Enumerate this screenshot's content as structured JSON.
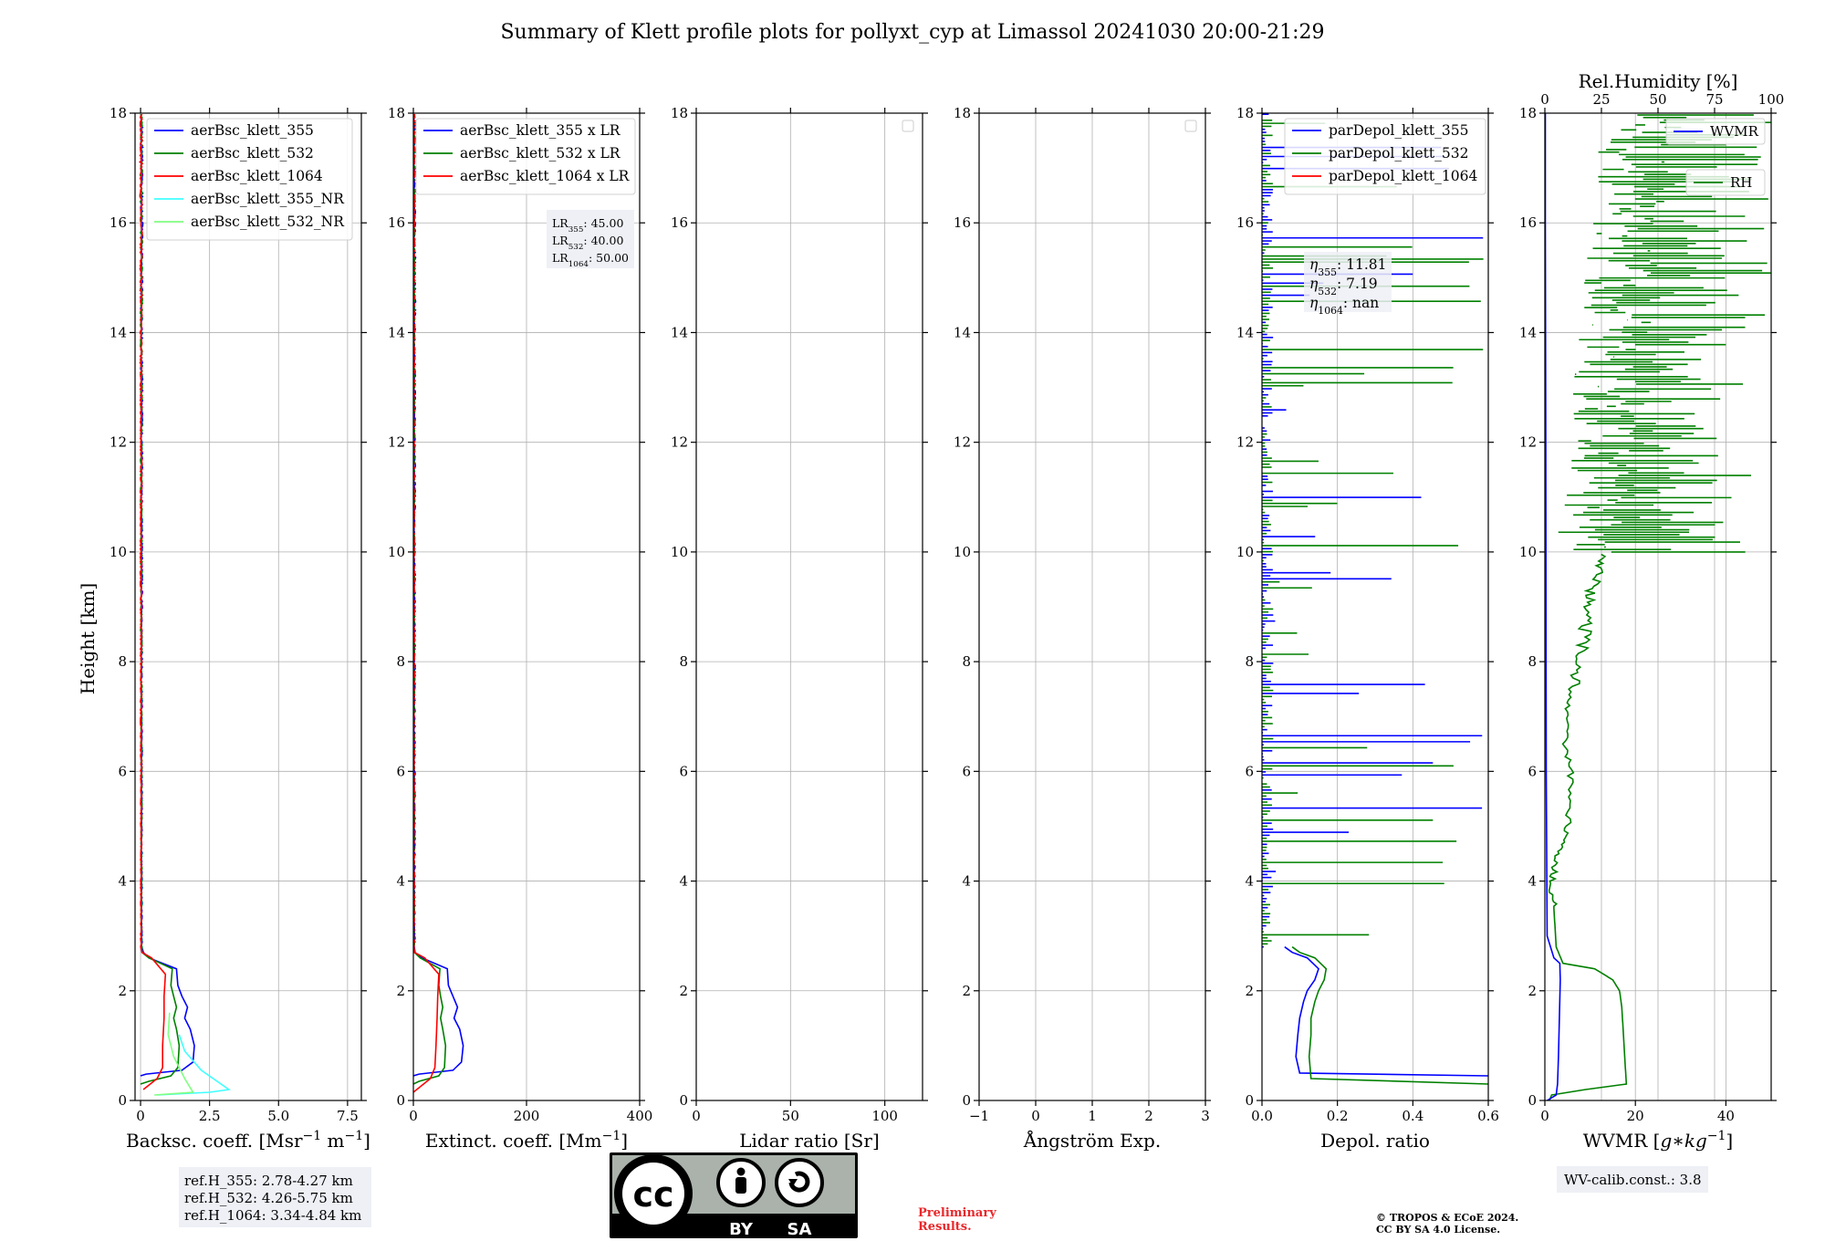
{
  "title": "Summary of Klett profile plots for pollyxt_cyp at Limassol 20241030 20:00-21:29",
  "y_axis": {
    "label": "Height [km]",
    "ylim": [
      0,
      18
    ],
    "ticks": [
      0,
      2,
      4,
      6,
      8,
      10,
      12,
      14,
      16,
      18
    ]
  },
  "colors": {
    "blue": "#0000ff",
    "green": "#008000",
    "red": "#ff0000",
    "cyan": "#40ffff",
    "lime": "#80ff80"
  },
  "chart_data": [
    {
      "type": "line",
      "xlabel": "Backsc. coeff. [Msr$^{-1}$ m$^{-1}$]",
      "xlabel_main": "Backsc. coeff. [Msr",
      "xlabel_mid": " m",
      "xlabel_exp": "−1",
      "xlim": [
        -0.2,
        8.0
      ],
      "xticks": [
        0,
        2.5,
        5.0,
        7.5
      ],
      "xtick_labels": [
        "0",
        "2.5",
        "5.0",
        "7.5"
      ],
      "ylim": [
        0,
        18
      ],
      "grid": true,
      "legend_position": "top-left",
      "legend": [
        "aerBsc_klett_355",
        "aerBsc_klett_532",
        "aerBsc_klett_1064",
        "aerBsc_klett_355_NR",
        "aerBsc_klett_532_NR"
      ],
      "legend_colors": [
        "#0000ff",
        "#008000",
        "#ff0000",
        "#40ffff",
        "#80ff80"
      ],
      "series": [
        {
          "name": "aerBsc_klett_355",
          "color": "#0000ff",
          "x": [
            0.0,
            0.2,
            1.5,
            1.9,
            1.95,
            1.8,
            1.6,
            1.7,
            1.5,
            1.35,
            1.3,
            0.3,
            0.1,
            0.05,
            0.05,
            0.04,
            0.04
          ],
          "y": [
            0.45,
            0.48,
            0.55,
            0.7,
            1.0,
            1.3,
            1.5,
            1.7,
            1.9,
            2.1,
            2.4,
            2.6,
            2.7,
            4.0,
            8.0,
            14.0,
            18.0
          ]
        },
        {
          "name": "aerBsc_klett_532",
          "color": "#008000",
          "x": [
            0.0,
            0.3,
            1.1,
            1.35,
            1.4,
            1.3,
            1.2,
            1.3,
            1.2,
            1.1,
            1.15,
            0.3,
            0.05,
            0.03,
            0.03
          ],
          "y": [
            0.3,
            0.35,
            0.45,
            0.6,
            1.0,
            1.3,
            1.5,
            1.7,
            1.9,
            2.1,
            2.4,
            2.6,
            2.7,
            6.0,
            18.0
          ]
        },
        {
          "name": "aerBsc_klett_1064",
          "color": "#ff0000",
          "x": [
            0.1,
            0.6,
            0.8,
            0.8,
            0.85,
            0.85,
            0.9,
            0.4,
            0.05,
            0.02,
            0.02
          ],
          "y": [
            0.2,
            0.4,
            0.6,
            1.0,
            1.5,
            1.9,
            2.3,
            2.6,
            2.7,
            6.0,
            18.0
          ]
        },
        {
          "name": "aerBsc_klett_355_NR",
          "color": "#40ffff",
          "x": [
            0.6,
            2.5,
            3.2,
            2.2,
            1.6,
            1.4
          ],
          "y": [
            0.1,
            0.15,
            0.2,
            0.55,
            0.9,
            1.2
          ]
        },
        {
          "name": "aerBsc_klett_532_NR",
          "color": "#80ff80",
          "x": [
            0.5,
            1.9,
            1.6,
            1.2,
            1.0,
            1.05
          ],
          "y": [
            0.1,
            0.15,
            0.4,
            0.8,
            1.2,
            1.6
          ]
        }
      ]
    },
    {
      "type": "line",
      "xlabel": "Extinct. coeff. [Mm$^{-1}$]",
      "xlabel_main": "Extinct. coeff. [Mm",
      "xlabel_exp": "−1",
      "xlim": [
        0,
        400
      ],
      "xticks": [
        0,
        200,
        400
      ],
      "xtick_labels": [
        "0",
        "200",
        "400"
      ],
      "ylim": [
        0,
        18
      ],
      "grid": true,
      "legend_position": "top-left",
      "legend": [
        "aerBsc_klett_355 x LR",
        "aerBsc_klett_532 x LR",
        "aerBsc_klett_1064 x LR"
      ],
      "legend_colors": [
        "#0000ff",
        "#008000",
        "#ff0000"
      ],
      "lr_box": {
        "lines": [
          {
            "pre": "LR",
            "sub": "355",
            "post": ": 45.00"
          },
          {
            "pre": "LR",
            "sub": "532",
            "post": ": 40.00"
          },
          {
            "pre": "LR",
            "sub": "1064",
            "post": ": 50.00"
          }
        ]
      },
      "series": [
        {
          "name": "aerBsc_klett_355 x LR",
          "color": "#0000ff",
          "x": [
            0,
            10,
            70,
            85,
            88,
            82,
            72,
            78,
            70,
            62,
            60,
            15,
            3,
            2,
            2
          ],
          "y": [
            0.45,
            0.48,
            0.55,
            0.7,
            1.0,
            1.3,
            1.5,
            1.7,
            1.9,
            2.1,
            2.4,
            2.6,
            2.7,
            8.0,
            18.0
          ]
        },
        {
          "name": "aerBsc_klett_532 x LR",
          "color": "#008000",
          "x": [
            0,
            10,
            45,
            55,
            57,
            52,
            48,
            52,
            48,
            45,
            47,
            12,
            2,
            1,
            1
          ],
          "y": [
            0.3,
            0.35,
            0.45,
            0.6,
            1.0,
            1.3,
            1.5,
            1.7,
            1.9,
            2.1,
            2.4,
            2.6,
            2.7,
            8.0,
            18.0
          ]
        },
        {
          "name": "aerBsc_klett_1064 x LR",
          "color": "#ff0000",
          "x": [
            0,
            30,
            38,
            40,
            42,
            43,
            45,
            20,
            2,
            1,
            1
          ],
          "y": [
            0.15,
            0.4,
            0.6,
            1.0,
            1.5,
            1.9,
            2.3,
            2.6,
            2.7,
            8.0,
            18.0
          ]
        }
      ]
    },
    {
      "type": "line",
      "xlabel": "Lidar ratio [Sr]",
      "xlim": [
        0,
        120
      ],
      "xticks": [
        0,
        50,
        100
      ],
      "xtick_labels": [
        "0",
        "50",
        "100"
      ],
      "ylim": [
        0,
        18
      ],
      "grid": true,
      "legend_position": "top-right",
      "empty_legend": true,
      "series": []
    },
    {
      "type": "line",
      "xlabel": "Ångström Exp.",
      "xlim": [
        -1,
        3
      ],
      "xticks": [
        -1,
        0,
        1,
        2,
        3
      ],
      "xtick_labels": [
        "−1",
        "0",
        "1",
        "2",
        "3"
      ],
      "ylim": [
        0,
        18
      ],
      "grid": true,
      "legend_position": "top-right",
      "empty_legend": true,
      "series": []
    },
    {
      "type": "line",
      "xlabel": "Depol. ratio",
      "xlim": [
        0,
        0.6
      ],
      "xticks": [
        0,
        0.2,
        0.4,
        0.6
      ],
      "xtick_labels": [
        "0.0",
        "0.2",
        "0.4",
        "0.6"
      ],
      "ylim": [
        0,
        18
      ],
      "grid": true,
      "legend_position": "top-right",
      "legend": [
        "parDepol_klett_355",
        "parDepol_klett_532",
        "parDepol_klett_1064"
      ],
      "legend_colors": [
        "#0000ff",
        "#008000",
        "#ff0000"
      ],
      "eta_box": {
        "lines": [
          {
            "pre": "η",
            "sub": "355",
            "post": ": 11.81"
          },
          {
            "pre": "η",
            "sub": "532",
            "post": ": 7.19"
          },
          {
            "pre": "η",
            "sub": "1064",
            "post": ": nan"
          }
        ]
      },
      "smooth_series": [
        {
          "name": "parDepol_klett_355",
          "color": "#0000ff",
          "x": [
            0.6,
            0.1,
            0.09,
            0.095,
            0.1,
            0.11,
            0.12,
            0.14,
            0.15,
            0.12,
            0.08,
            0.06
          ],
          "y": [
            0.45,
            0.5,
            0.8,
            1.2,
            1.5,
            1.8,
            2.0,
            2.2,
            2.4,
            2.6,
            2.7,
            2.8
          ]
        },
        {
          "name": "parDepol_klett_532",
          "color": "#008000",
          "x": [
            0.6,
            0.13,
            0.125,
            0.13,
            0.13,
            0.14,
            0.15,
            0.165,
            0.17,
            0.14,
            0.1,
            0.08
          ],
          "y": [
            0.3,
            0.4,
            0.8,
            1.2,
            1.5,
            1.8,
            2.0,
            2.2,
            2.4,
            2.6,
            2.7,
            2.8
          ]
        }
      ],
      "noise_region": {
        "y_start": 2.8,
        "y_end": 18.0,
        "x_range": [
          0.0,
          0.6
        ]
      }
    },
    {
      "type": "line",
      "xlabel": "WVMR [$g*kg^{-1}$]",
      "xlabel_main": "WVMR [",
      "xlabel_italic": "g∗kg",
      "xlabel_exp": "−1",
      "xlabel_close": "]",
      "xlim": [
        0,
        50
      ],
      "xticks": [
        0,
        20,
        40
      ],
      "xtick_labels": [
        "0",
        "20",
        "40"
      ],
      "top_axis": {
        "label": "Rel.Humidity [%]",
        "xlim": [
          0,
          100
        ],
        "xticks": [
          0,
          25,
          50,
          75,
          100
        ],
        "xtick_labels": [
          "0",
          "25",
          "50",
          "75",
          "100"
        ]
      },
      "ylim": [
        0,
        18
      ],
      "grid": true,
      "legend_position": "top-right",
      "legend": [
        "WVMR",
        "RH"
      ],
      "legend_colors": [
        "#0000ff",
        "#008000"
      ],
      "wv_calib": "WV-calib.const.: 3.8",
      "wvmr": {
        "name": "WVMR",
        "color": "#0000ff",
        "x": [
          0.5,
          2.5,
          2.8,
          3.0,
          3.2,
          3.4,
          3.3,
          2.0,
          0.5,
          0.3,
          0.2,
          0.1,
          0.1
        ],
        "y": [
          0.0,
          0.1,
          0.3,
          0.8,
          1.5,
          2.2,
          2.5,
          2.6,
          3.0,
          6.0,
          12.0,
          16.0,
          18.0
        ]
      },
      "rh_smooth": {
        "name": "RH",
        "color": "#008000",
        "x": [
          2,
          3,
          18,
          36,
          35,
          34,
          33,
          30,
          22,
          8,
          5,
          4,
          3,
          6,
          10,
          12,
          9,
          11,
          14,
          17,
          20,
          22,
          25
        ],
        "y": [
          0.0,
          0.1,
          0.2,
          0.3,
          1.0,
          1.7,
          2.0,
          2.2,
          2.4,
          2.5,
          2.8,
          3.5,
          4.0,
          4.5,
          5.0,
          5.8,
          6.5,
          7.2,
          7.8,
          8.4,
          9.0,
          9.5,
          10.0
        ]
      },
      "rh_noise_region": {
        "y_start": 10.0,
        "y_end": 18.0
      }
    }
  ],
  "ref_box": {
    "lines": [
      "ref.H_355: 2.78-4.27 km",
      "ref.H_532: 4.26-5.75 km",
      "ref.H_1064: 3.34-4.84 km"
    ]
  },
  "license_badge": {
    "cc": "cc",
    "by": "BY",
    "sa": "SA"
  },
  "preliminary": {
    "line1": "Preliminary",
    "line2": "Results."
  },
  "copyright": {
    "line1": "© TROPOS & ECoE 2024.",
    "line2": "CC BY SA 4.0 License."
  }
}
